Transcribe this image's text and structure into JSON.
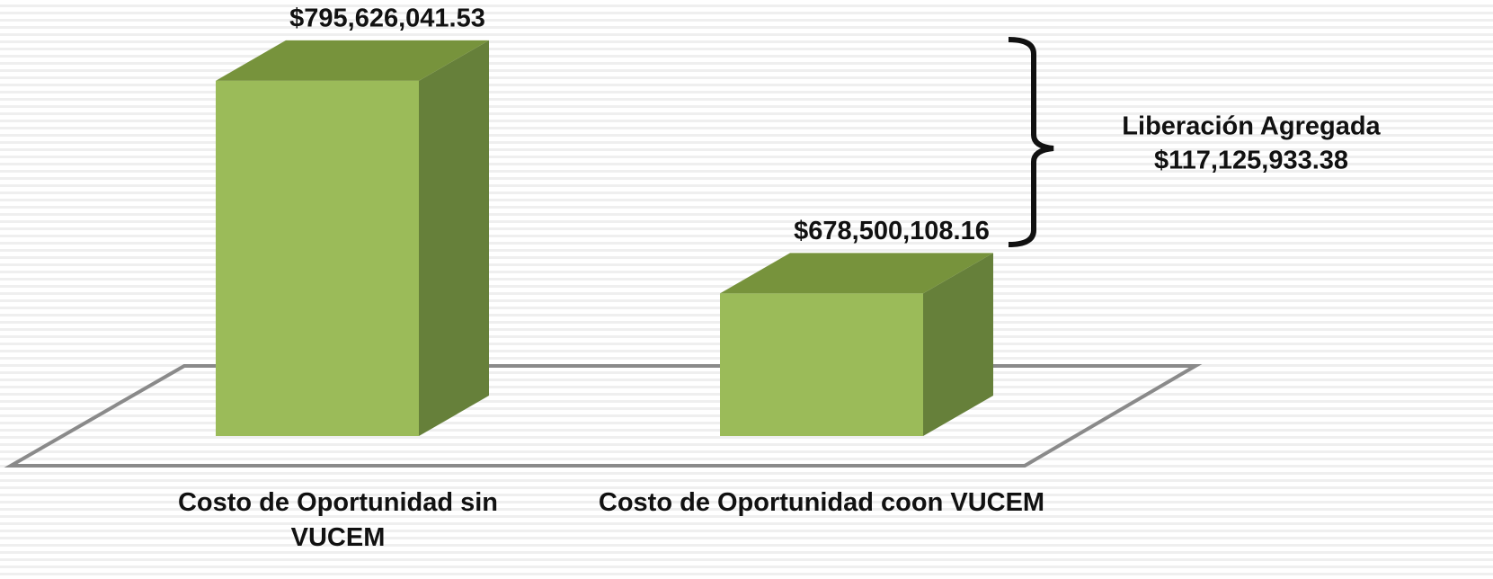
{
  "chart_data": {
    "type": "bar",
    "categories": [
      "Costo de Oportunidad sin VUCEM",
      "Costo de Oportunidad coon VUCEM"
    ],
    "values": [
      795626041.53,
      678500108.16
    ],
    "value_labels": [
      "$795,626,041.53",
      "$678,500,108.16"
    ],
    "color": "#9bbb59",
    "ylim": [
      600000000,
      800000000
    ],
    "annotation": {
      "title": "Liberación Agregada",
      "value": "$117,125,933.38"
    }
  }
}
